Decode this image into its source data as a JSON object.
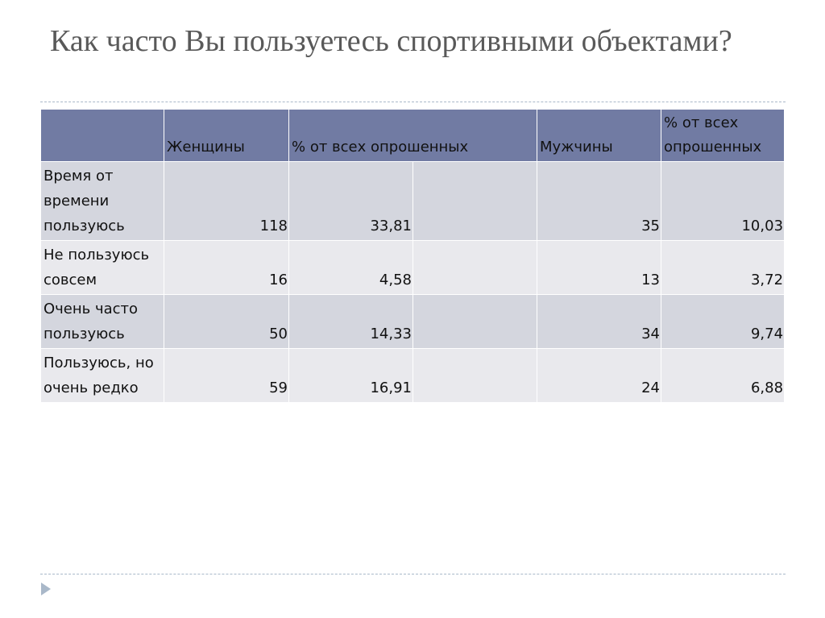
{
  "title": "Как часто Вы пользуетесь спортивными объектами?",
  "table": {
    "header": [
      "Женщины",
      "% от всех опрошенных",
      "Мужчины",
      "% от всех опрошенных"
    ],
    "rows": [
      [
        "Время от времени пользуюсь",
        "118",
        "33,81",
        "35",
        "10,03"
      ],
      [
        "Не пользуюсь совсем",
        "16",
        "4,58",
        "13",
        "3,72"
      ],
      [
        "Очень часто пользуюсь",
        "50",
        "14,33",
        "34",
        "9,74"
      ],
      [
        "Пользуюсь, но очень редко",
        "59",
        "16,91",
        "24",
        "6,88"
      ]
    ]
  }
}
